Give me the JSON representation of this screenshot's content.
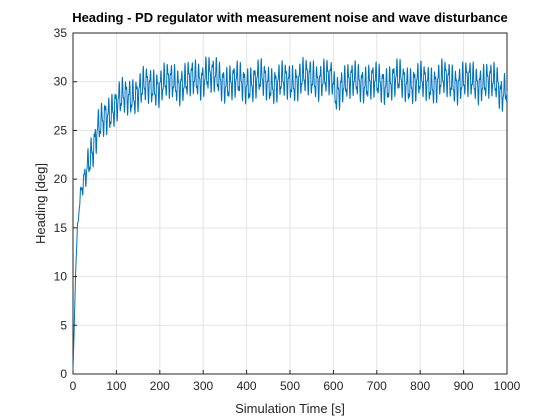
{
  "chart_data": {
    "type": "line",
    "title": "Heading - PD regulator with measurement noise and wave disturbance",
    "xlabel": "Simulation Time [s]",
    "ylabel": "Heading [deg]",
    "xlim": [
      0,
      1000
    ],
    "ylim": [
      0,
      35
    ],
    "xticks": [
      0,
      100,
      200,
      300,
      400,
      500,
      600,
      700,
      800,
      900,
      1000
    ],
    "yticks": [
      0,
      5,
      10,
      15,
      20,
      25,
      30,
      35
    ],
    "grid": true,
    "series": [
      {
        "color": "#0072BD",
        "x": [
          0,
          3,
          6,
          10,
          15,
          20,
          25,
          30,
          35,
          40,
          45,
          50,
          55,
          60,
          65,
          70,
          75,
          80,
          85,
          90,
          95,
          100,
          110,
          120,
          130,
          140,
          150,
          160,
          170,
          180,
          190,
          200,
          220,
          240,
          260,
          280,
          300,
          305,
          320,
          340,
          360,
          380,
          400,
          420,
          440,
          460,
          480,
          500,
          520,
          540,
          560,
          580,
          600,
          603,
          620,
          640,
          660,
          680,
          700,
          720,
          740,
          760,
          780,
          800,
          820,
          840,
          860,
          880,
          900,
          920,
          940,
          960,
          980,
          985,
          1000
        ],
        "y": [
          0.3,
          5.0,
          10.5,
          14.5,
          17.5,
          19.0,
          20.0,
          21.0,
          22.0,
          22.5,
          23.0,
          23.5,
          24.5,
          25.0,
          25.5,
          26.0,
          26.5,
          26.8,
          27.0,
          27.3,
          27.5,
          27.7,
          28.0,
          28.3,
          28.5,
          28.8,
          29.0,
          29.2,
          29.4,
          29.5,
          29.6,
          29.7,
          29.8,
          29.9,
          30.0,
          30.1,
          30.5,
          31.0,
          30.4,
          30.1,
          30.0,
          29.8,
          29.9,
          30.0,
          30.1,
          29.9,
          29.8,
          30.0,
          30.3,
          30.2,
          30.4,
          30.3,
          30.0,
          28.5,
          30.0,
          29.8,
          30.1,
          30.0,
          29.7,
          29.9,
          30.1,
          30.0,
          29.9,
          29.8,
          29.9,
          30.0,
          30.1,
          30.0,
          29.9,
          30.1,
          30.0,
          29.8,
          29.9,
          29.0,
          29.5
        ],
        "oscillation_amplitude_deg": 1.8,
        "oscillation_period_s": 8
      }
    ]
  }
}
